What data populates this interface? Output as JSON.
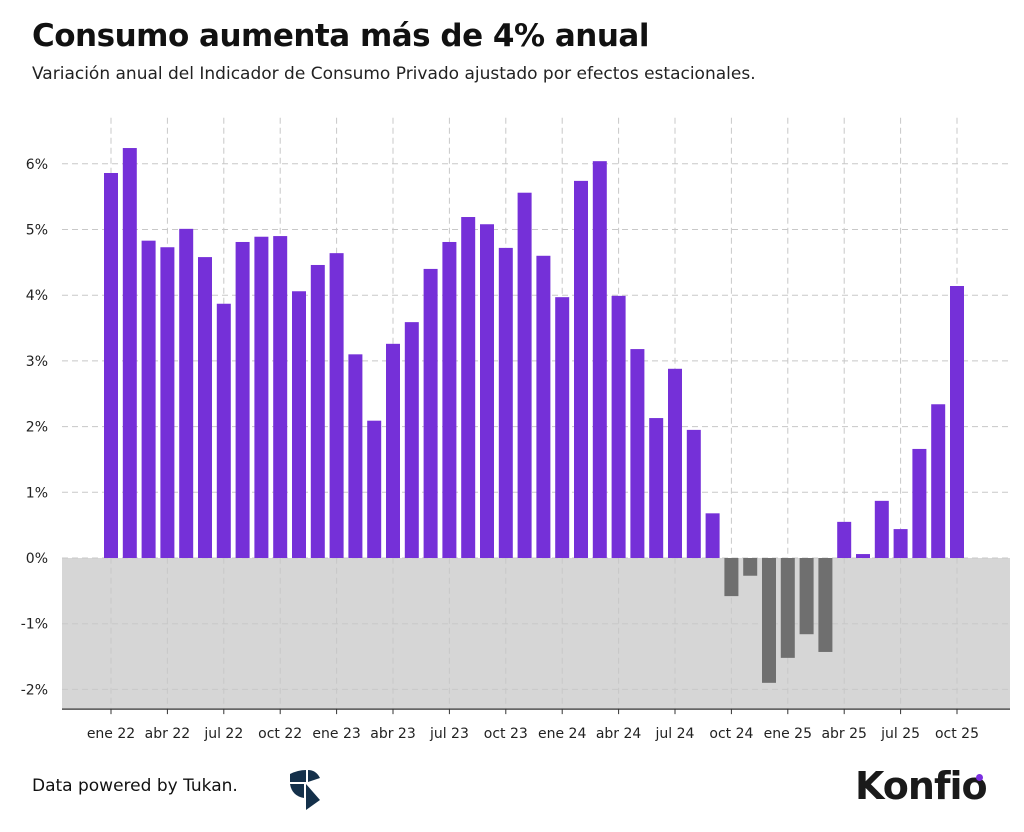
{
  "chart_data": {
    "type": "bar",
    "title": "Consumo aumenta más de 4% anual",
    "subtitle": "Variación anual del Indicador de Consumo Privado ajustado por efectos estacionales.",
    "xlabel": "",
    "ylabel": "",
    "ylim": [
      -2.3,
      6.7
    ],
    "yticks": [
      -2,
      -1,
      0,
      1,
      2,
      3,
      4,
      5,
      6
    ],
    "ytick_labels": [
      "-2%",
      "-1%",
      "0%",
      "1%",
      "2%",
      "3%",
      "4%",
      "5%",
      "6%"
    ],
    "xtick_labels": [
      "ene 22",
      "abr 22",
      "jul 22",
      "oct 22",
      "ene 23",
      "abr 23",
      "jul 23",
      "oct 23",
      "ene 24",
      "abr 24",
      "jul 24",
      "oct 24",
      "ene 25",
      "abr 25",
      "jul 25",
      "oct 25"
    ],
    "grid": true,
    "colors": {
      "positive": "#7530d8",
      "negative": "#6f6f6f",
      "negative_area": "#d6d6d6"
    },
    "values": [
      5.86,
      6.24,
      4.83,
      4.73,
      5.01,
      4.58,
      3.87,
      4.81,
      4.89,
      4.9,
      4.06,
      4.46,
      4.64,
      3.1,
      2.09,
      3.26,
      3.59,
      4.4,
      4.81,
      5.19,
      5.08,
      4.72,
      5.56,
      4.6,
      3.97,
      5.74,
      6.04,
      3.99,
      3.18,
      2.13,
      2.88,
      1.95,
      0.68,
      -0.58,
      -0.27,
      -1.9,
      -1.52,
      -1.16,
      -1.43,
      0.55,
      0.06,
      0.87,
      0.44,
      1.66,
      2.34,
      4.14
    ]
  },
  "footer": {
    "source": "Data powered by Tukan.",
    "brand": "Konfio"
  }
}
